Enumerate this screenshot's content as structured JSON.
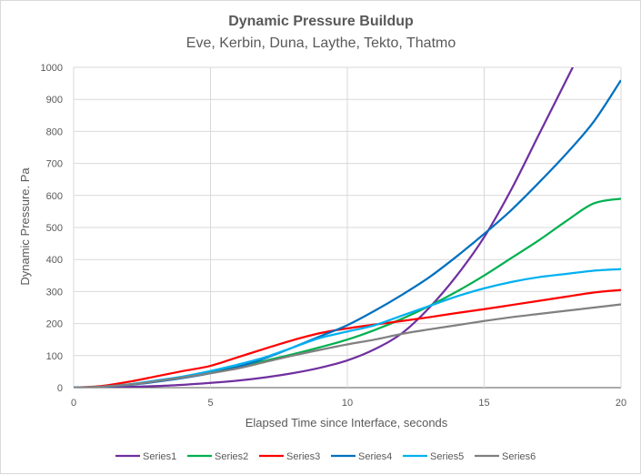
{
  "chart_data": {
    "type": "line",
    "title": "Dynamic Pressure Buildup",
    "subtitle": "Eve, Kerbin, Duna, Laythe, Tekto, Thatmo",
    "xlabel": "Elapsed Time since Interface, seconds",
    "ylabel": "Dynamic Pressure. Pa",
    "xlim": [
      0,
      20
    ],
    "ylim": [
      0,
      1000
    ],
    "xticks": [
      0,
      5,
      10,
      15,
      20
    ],
    "yticks": [
      0,
      100,
      200,
      300,
      400,
      500,
      600,
      700,
      800,
      900,
      1000
    ],
    "grid": true,
    "legend_position": "bottom",
    "x": [
      0,
      1,
      2,
      3,
      4,
      5,
      6,
      7,
      8,
      9,
      10,
      11,
      12,
      13,
      14,
      15,
      16,
      17,
      18,
      19,
      20
    ],
    "series": [
      {
        "name": "Series1",
        "color": "#7030a0",
        "values": [
          0,
          0.5,
          2,
          5,
          9,
          15,
          22,
          32,
          45,
          62,
          85,
          120,
          170,
          250,
          350,
          470,
          620,
          790,
          960,
          1130,
          null
        ]
      },
      {
        "name": "Series2",
        "color": "#00b050",
        "values": [
          0,
          3,
          10,
          20,
          33,
          48,
          65,
          84,
          104,
          126,
          150,
          180,
          215,
          255,
          300,
          350,
          405,
          460,
          520,
          575,
          590
        ]
      },
      {
        "name": "Series3",
        "color": "#ff0000",
        "values": [
          0,
          5,
          18,
          35,
          52,
          68,
          95,
          122,
          148,
          170,
          185,
          197,
          208,
          220,
          233,
          245,
          258,
          271,
          284,
          297,
          305
        ]
      },
      {
        "name": "Series4",
        "color": "#0070c0",
        "values": [
          0,
          2,
          8,
          18,
          30,
          45,
          65,
          92,
          125,
          160,
          195,
          240,
          290,
          345,
          410,
          480,
          555,
          640,
          730,
          830,
          960
        ]
      },
      {
        "name": "Series5",
        "color": "#00b0f0",
        "values": [
          0,
          3,
          10,
          22,
          35,
          52,
          72,
          95,
          125,
          155,
          175,
          195,
          225,
          255,
          285,
          310,
          330,
          345,
          355,
          365,
          370
        ]
      },
      {
        "name": "Series6",
        "color": "#808080",
        "values": [
          0,
          3,
          9,
          20,
          32,
          45,
          60,
          80,
          100,
          118,
          135,
          150,
          168,
          182,
          195,
          208,
          220,
          230,
          240,
          250,
          260
        ]
      }
    ],
    "axis_color": "#595959",
    "grid_color": "#d9d9d9"
  }
}
